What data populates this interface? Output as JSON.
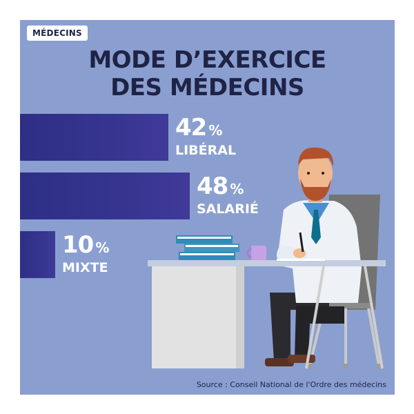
{
  "tag": "MÉDECINS",
  "title_line1": "MODE D’EXERCICE",
  "title_line2": "DES MÉDECINS",
  "source": "Source : Conseil National de l'Ordre des médecins",
  "chart_data": {
    "type": "bar",
    "orientation": "horizontal",
    "categories": [
      "LIBÉRAL",
      "SALARIÉ",
      "MIXTE"
    ],
    "values": [
      42,
      48,
      10
    ],
    "unit": "%",
    "title": "MODE D’EXERCICE DES MÉDECINS",
    "bar_color": "#34338e"
  },
  "colors": {
    "background": "#8a9fd0",
    "bar": "#34338e",
    "title": "#1f2345"
  }
}
